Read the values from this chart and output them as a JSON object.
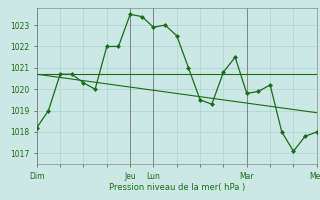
{
  "bg_color": "#cce8e4",
  "grid_color": "#aad4d0",
  "line_color": "#1a6b1a",
  "marker_color": "#1a6b1a",
  "xlabel": "Pression niveau de la mer( hPa )",
  "ylim": [
    1016.5,
    1023.8
  ],
  "yticks": [
    1017,
    1018,
    1019,
    1020,
    1021,
    1022,
    1023
  ],
  "xtick_labels": [
    "Dim",
    "",
    "",
    "",
    "Jeu",
    "Lun",
    "",
    "",
    "",
    "Mar",
    "",
    "",
    "Mer"
  ],
  "xtick_positions": [
    0,
    12,
    24,
    36,
    48,
    60,
    72,
    84,
    96,
    108,
    120,
    132,
    144
  ],
  "vlines": [
    0,
    48,
    60,
    108,
    144
  ],
  "series1": {
    "x": [
      0,
      6,
      12,
      18,
      24,
      30,
      36,
      42,
      48,
      54,
      60,
      66,
      72,
      78,
      84,
      90,
      96,
      102,
      108,
      114,
      120,
      126,
      132,
      138,
      144
    ],
    "y": [
      1018.2,
      1019.0,
      1020.7,
      1020.7,
      1020.3,
      1020.0,
      1022.0,
      1022.0,
      1023.5,
      1023.4,
      1022.9,
      1023.0,
      1022.5,
      1021.0,
      1019.5,
      1019.3,
      1020.8,
      1021.5,
      1019.8,
      1019.9,
      1020.2,
      1018.0,
      1017.1,
      1017.8,
      1018.0
    ]
  },
  "series2": {
    "x": [
      0,
      144
    ],
    "y": [
      1020.7,
      1020.7
    ]
  },
  "series3": {
    "x": [
      0,
      144
    ],
    "y": [
      1020.7,
      1018.9
    ]
  }
}
